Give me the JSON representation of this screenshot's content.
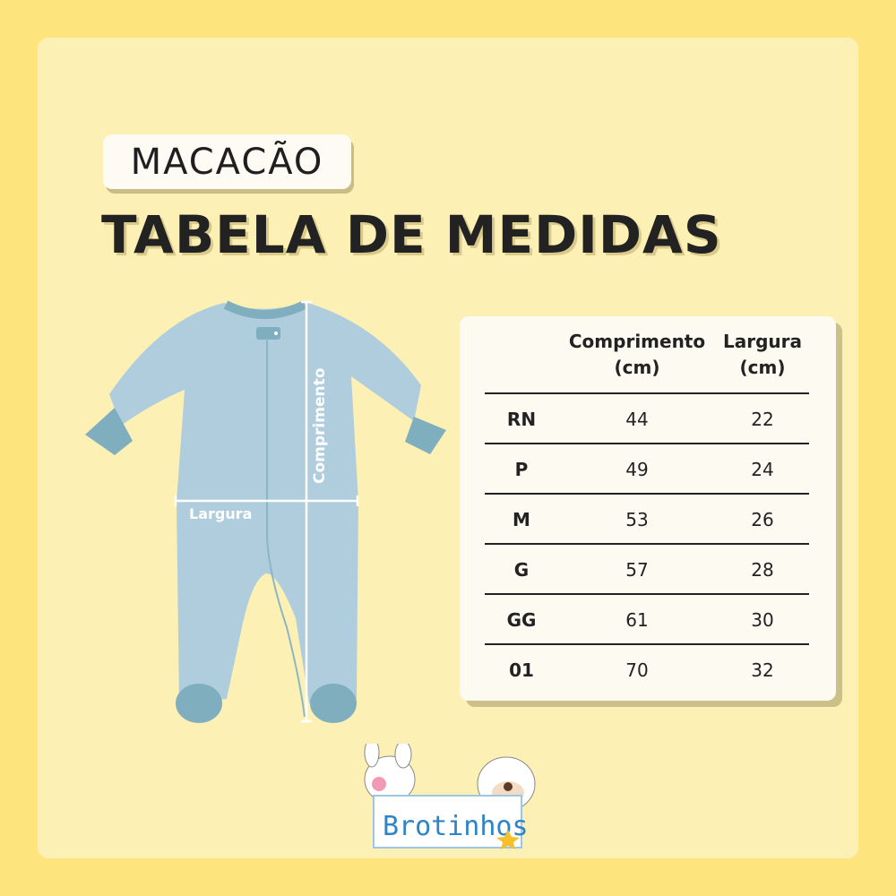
{
  "header": {
    "product": "MACACÃO",
    "title": "TABELA DE MEDIDAS"
  },
  "diagram": {
    "length_label": "Comprimento",
    "width_label": "Largura"
  },
  "table": {
    "columns": [
      "",
      "Comprimento (cm)",
      "Largura (cm)"
    ],
    "col1_line1": "Comprimento",
    "col1_line2": "(cm)",
    "col2_line1": "Largura",
    "col2_line2": "(cm)",
    "rows": [
      {
        "size": "RN",
        "length": "44",
        "width": "22"
      },
      {
        "size": "P",
        "length": "49",
        "width": "24"
      },
      {
        "size": "M",
        "length": "53",
        "width": "26"
      },
      {
        "size": "G",
        "length": "57",
        "width": "28"
      },
      {
        "size": "GG",
        "length": "61",
        "width": "30"
      },
      {
        "size": "01",
        "length": "70",
        "width": "32"
      }
    ]
  },
  "brand": {
    "name": "Brotinhos"
  },
  "colors": {
    "background": "#FDE47C",
    "panel": "#FDF0B4",
    "garment": "#AFCDDC",
    "trim": "#7FAFBF"
  }
}
